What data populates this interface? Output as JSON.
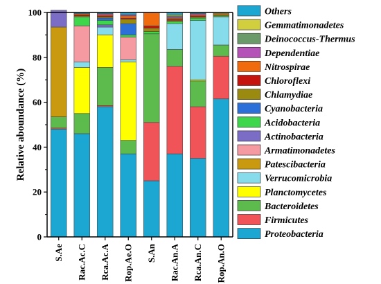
{
  "chart_data": {
    "type": "bar",
    "stacked": true,
    "ylabel": "Relative aboundance (%)",
    "ylim": [
      0,
      100
    ],
    "yticks": [
      0,
      20,
      40,
      60,
      80,
      100
    ],
    "grid": false,
    "legend_position": "right",
    "categories": [
      "S.Ae",
      "Rac.Ac.C",
      "Rca.Ac.A",
      "Rop.Ae.O",
      "S.An",
      "Rac.An.A",
      "Rca.An.C",
      "Rop.An.O"
    ],
    "series": [
      {
        "name": "Proteobacteria",
        "color": "#1ca6d2",
        "values": [
          48,
          46,
          58,
          37,
          25,
          37,
          35,
          61.5
        ]
      },
      {
        "name": "Firmicutes",
        "color": "#f05458",
        "values": [
          0.5,
          0,
          0.5,
          0,
          26,
          39,
          23,
          19
        ]
      },
      {
        "name": "Bacteroidetes",
        "color": "#5cbb4c",
        "values": [
          5,
          9,
          17,
          6,
          39.5,
          7.5,
          11.5,
          5
        ]
      },
      {
        "name": "Planctomycetes",
        "color": "#ffff00",
        "values": [
          0,
          20.5,
          14.5,
          35,
          0,
          0,
          0.5,
          0
        ]
      },
      {
        "name": "Verrucomicrobia",
        "color": "#86dcea",
        "values": [
          0,
          2.5,
          3.5,
          1,
          0,
          11.5,
          26.5,
          12.5
        ]
      },
      {
        "name": "Patescibacteria",
        "color": "#c99a0f",
        "values": [
          40,
          0,
          0,
          0,
          0,
          0,
          0,
          0
        ]
      },
      {
        "name": "Armatimonadetes",
        "color": "#f49aa0",
        "values": [
          0,
          16,
          0,
          10,
          0,
          0,
          0,
          0
        ]
      },
      {
        "name": "Actinobacteria",
        "color": "#7b6cc6",
        "values": [
          7.5,
          0,
          1,
          0,
          0,
          0,
          0,
          0
        ]
      },
      {
        "name": "Acidobacteria",
        "color": "#3ed64b",
        "values": [
          0,
          4,
          2,
          1,
          1,
          1,
          1,
          0.5
        ]
      },
      {
        "name": "Cyanobacteria",
        "color": "#2b70d8",
        "values": [
          0,
          0,
          1,
          5,
          0,
          0,
          0,
          0
        ]
      },
      {
        "name": "Chlamydiae",
        "color": "#9a8a10",
        "values": [
          0,
          0.5,
          0.5,
          2,
          1.5,
          0.5,
          0.5,
          0.5
        ]
      },
      {
        "name": "Chloroflexi",
        "color": "#c5140e",
        "values": [
          0,
          0.5,
          0.5,
          0.5,
          1,
          0.5,
          0.5,
          0
        ]
      },
      {
        "name": "Nitrospirae",
        "color": "#f06a0e",
        "values": [
          0,
          0.5,
          0.5,
          1,
          6,
          0.5,
          0.5,
          0.5
        ]
      },
      {
        "name": "Dependentiae",
        "color": "#b552b7",
        "values": [
          0,
          0,
          0.5,
          0.5,
          0,
          0.5,
          0.5,
          0
        ]
      },
      {
        "name": "Deinococcus-Thermus",
        "color": "#6a9a6a",
        "values": [
          0,
          0,
          0,
          0,
          0,
          0.5,
          0,
          0
        ]
      },
      {
        "name": "Gemmatimonadetes",
        "color": "#d2cf3e",
        "values": [
          0,
          0,
          0,
          0,
          0,
          0.5,
          0,
          0.5
        ]
      },
      {
        "name": "Others",
        "color": "#1ca6d2",
        "values": [
          0,
          0,
          0,
          0,
          0,
          0,
          0,
          0
        ]
      }
    ]
  }
}
